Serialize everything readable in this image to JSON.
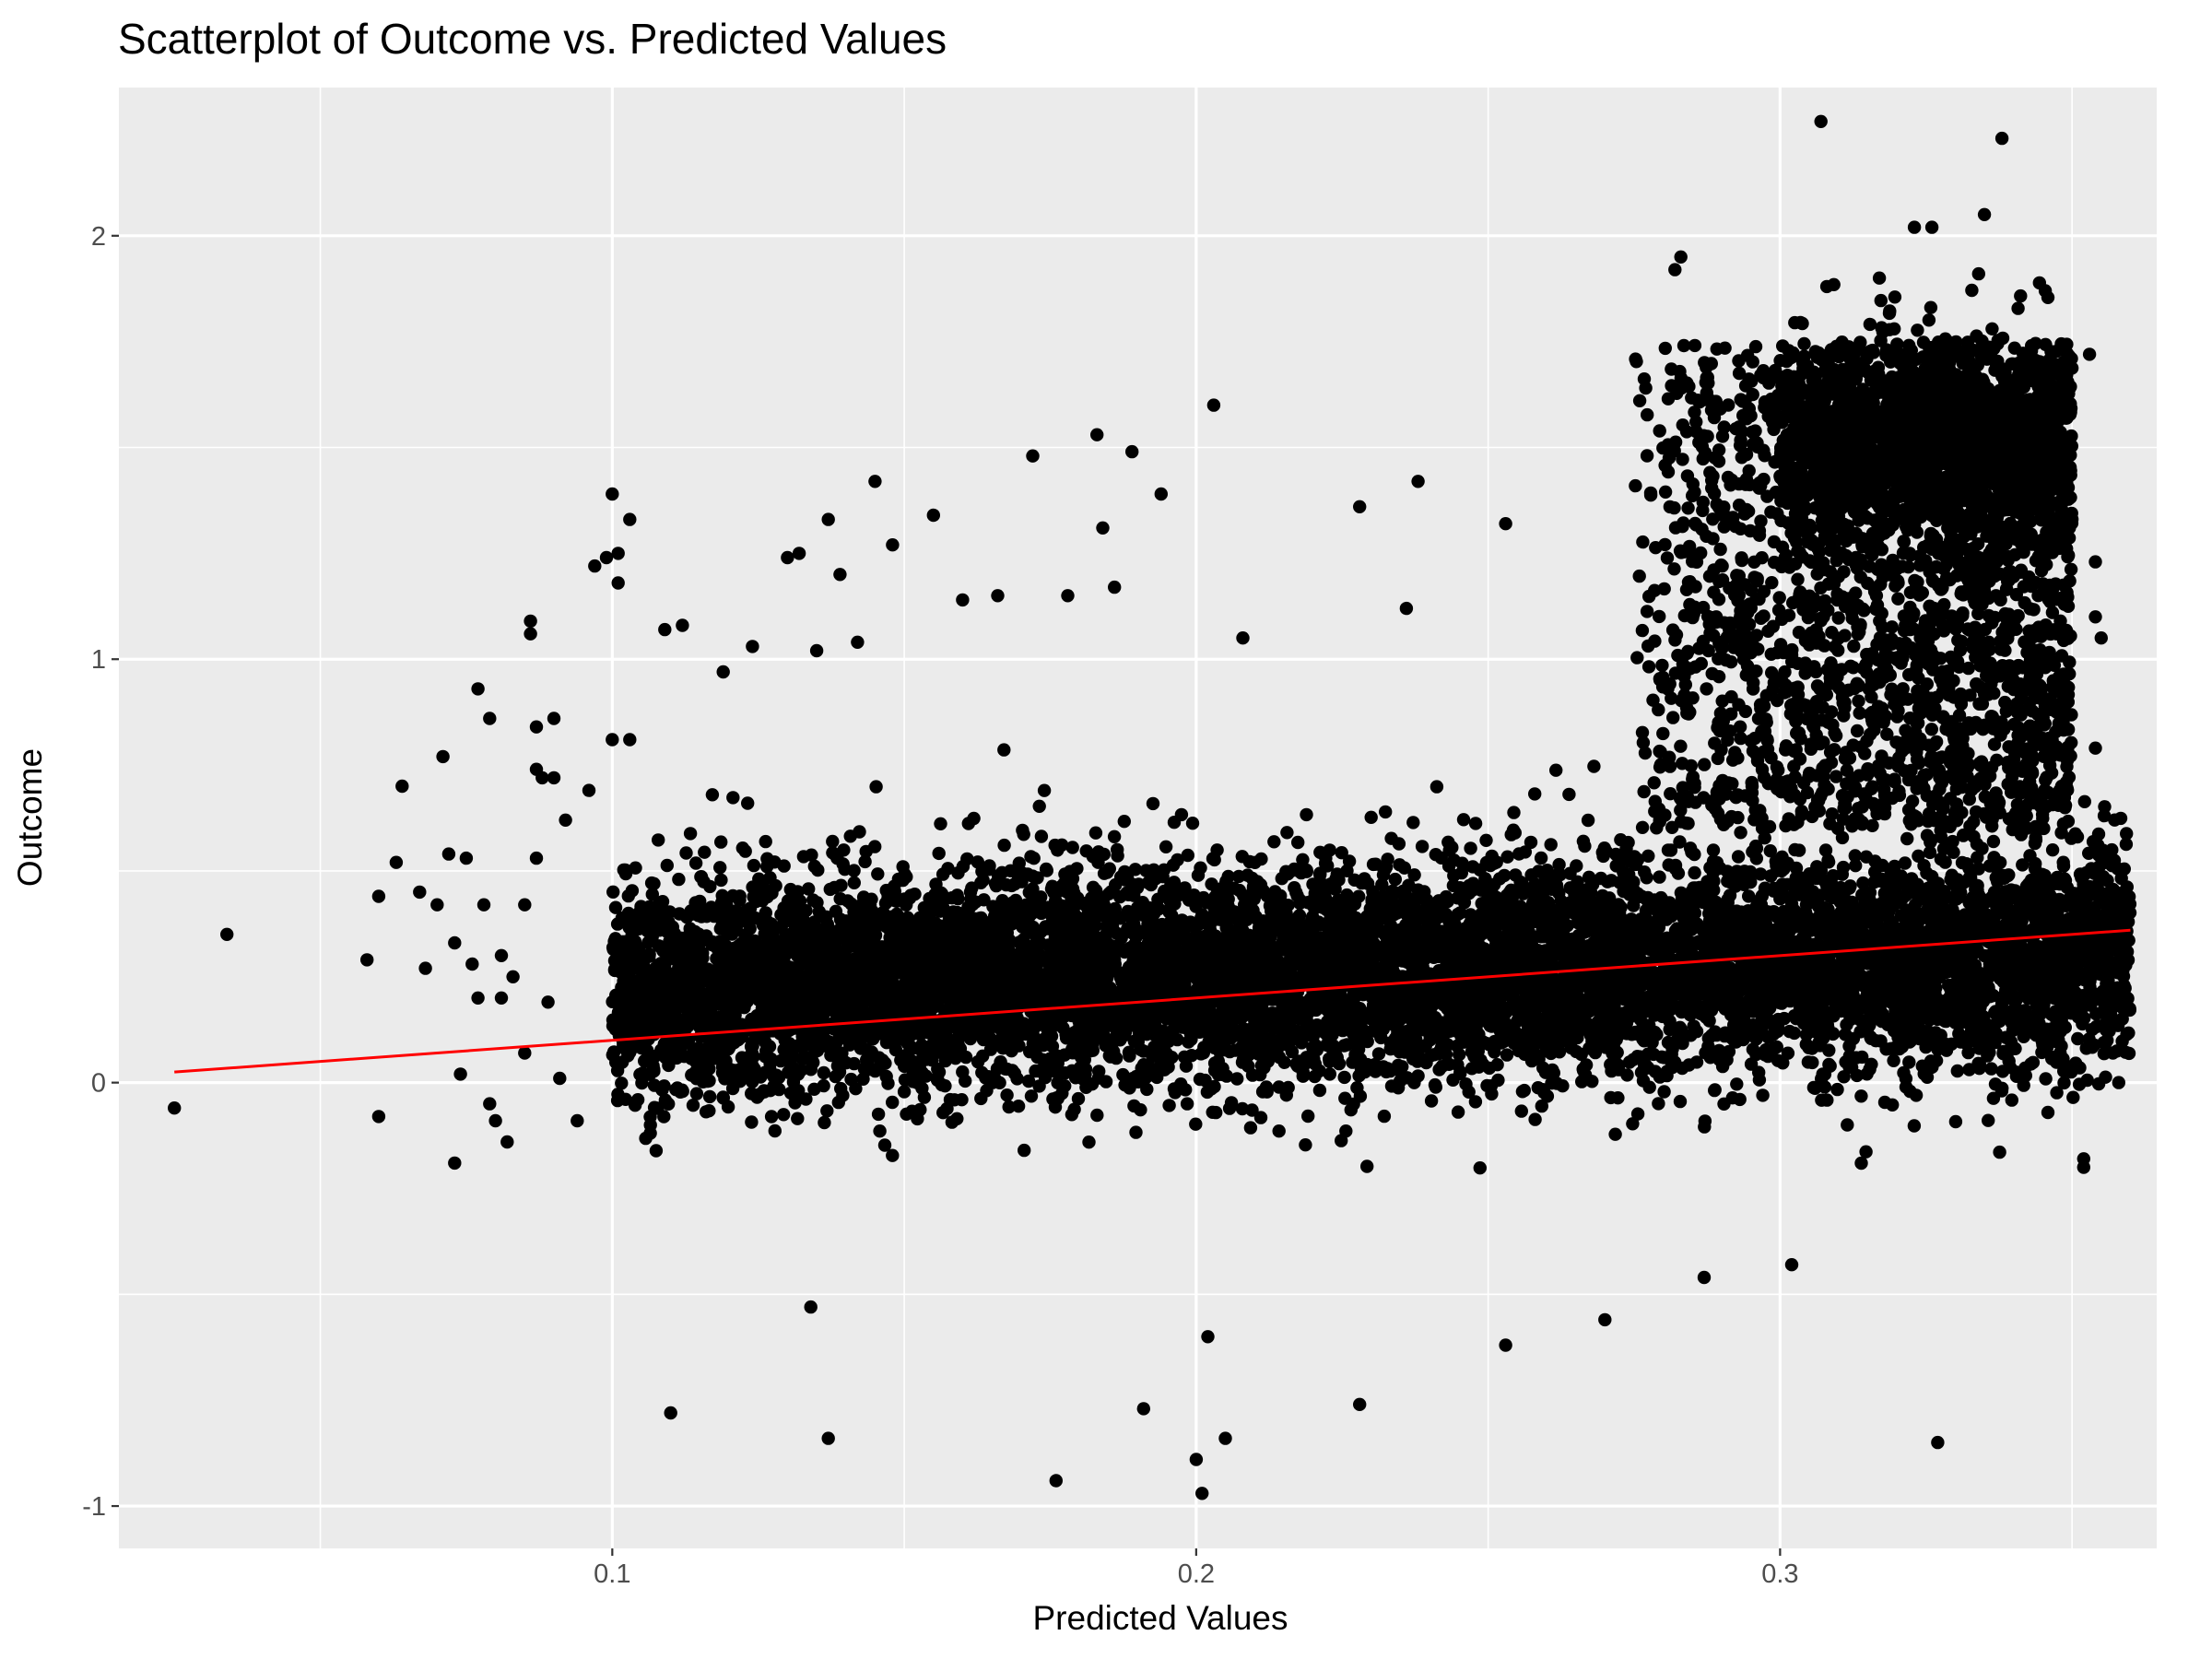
{
  "chart_data": {
    "type": "scatter",
    "title": "Scatterplot of Outcome vs. Predicted Values",
    "xlabel": "Predicted Values",
    "ylabel": "Outcome",
    "xlim": [
      0.0155,
      0.3645
    ],
    "ylim": [
      -1.1,
      2.35
    ],
    "x_ticks": [
      {
        "value": 0.1,
        "label": "0.1"
      },
      {
        "value": 0.2,
        "label": "0.2"
      },
      {
        "value": 0.3,
        "label": "0.3"
      }
    ],
    "y_ticks": [
      {
        "value": -1,
        "label": "-1"
      },
      {
        "value": 0,
        "label": "0"
      },
      {
        "value": 1,
        "label": "1"
      },
      {
        "value": 2,
        "label": "2"
      }
    ],
    "x_minor_breaks": [
      0.05,
      0.15,
      0.25,
      0.35
    ],
    "y_minor_breaks": [
      -0.5,
      0.5,
      1.5
    ],
    "grid": true,
    "background": "#ebebeb",
    "grid_color": "#ffffff",
    "point_color": "#000000",
    "points": [
      [
        0.025,
        -0.06
      ],
      [
        0.034,
        0.35
      ],
      [
        0.058,
        0.29
      ],
      [
        0.06,
        -0.08
      ],
      [
        0.06,
        0.44
      ],
      [
        0.063,
        0.52
      ],
      [
        0.064,
        0.7
      ],
      [
        0.067,
        0.45
      ],
      [
        0.068,
        0.27
      ],
      [
        0.07,
        0.42
      ],
      [
        0.071,
        0.77
      ],
      [
        0.072,
        0.54
      ],
      [
        0.073,
        0.33
      ],
      [
        0.073,
        -0.19
      ],
      [
        0.074,
        0.02
      ],
      [
        0.075,
        0.53
      ],
      [
        0.076,
        0.28
      ],
      [
        0.077,
        0.93
      ],
      [
        0.077,
        0.2
      ],
      [
        0.078,
        0.42
      ],
      [
        0.079,
        -0.05
      ],
      [
        0.079,
        0.86
      ],
      [
        0.08,
        -0.09
      ],
      [
        0.081,
        0.2
      ],
      [
        0.081,
        0.3
      ],
      [
        0.082,
        -0.14
      ],
      [
        0.083,
        0.25
      ],
      [
        0.085,
        0.42
      ],
      [
        0.085,
        0.07
      ],
      [
        0.086,
        1.09
      ],
      [
        0.086,
        1.06
      ],
      [
        0.087,
        0.84
      ],
      [
        0.087,
        0.53
      ],
      [
        0.087,
        0.74
      ],
      [
        0.088,
        0.72
      ],
      [
        0.089,
        0.19
      ],
      [
        0.09,
        0.86
      ],
      [
        0.09,
        0.72
      ],
      [
        0.091,
        0.01
      ],
      [
        0.092,
        0.62
      ],
      [
        0.094,
        -0.09
      ],
      [
        0.096,
        0.69
      ],
      [
        0.097,
        1.22
      ],
      [
        0.099,
        1.24
      ],
      [
        0.1,
        1.39
      ],
      [
        0.1,
        0.81
      ],
      [
        0.101,
        1.25
      ],
      [
        0.101,
        1.18
      ],
      [
        0.103,
        1.33
      ],
      [
        0.103,
        0.81
      ],
      [
        0.109,
        1.07
      ],
      [
        0.11,
        -0.78
      ],
      [
        0.112,
        1.08
      ],
      [
        0.119,
        0.97
      ],
      [
        0.124,
        1.03
      ],
      [
        0.13,
        1.24
      ],
      [
        0.132,
        1.25
      ],
      [
        0.134,
        -0.53
      ],
      [
        0.135,
        1.02
      ],
      [
        0.137,
        1.33
      ],
      [
        0.137,
        -0.84
      ],
      [
        0.139,
        1.2
      ],
      [
        0.142,
        1.04
      ],
      [
        0.145,
        1.42
      ],
      [
        0.148,
        1.27
      ],
      [
        0.155,
        1.34
      ],
      [
        0.16,
        1.14
      ],
      [
        0.166,
        1.15
      ],
      [
        0.172,
        1.48
      ],
      [
        0.176,
        -0.94
      ],
      [
        0.178,
        1.15
      ],
      [
        0.183,
        1.53
      ],
      [
        0.184,
        1.31
      ],
      [
        0.186,
        1.17
      ],
      [
        0.189,
        1.49
      ],
      [
        0.191,
        -0.77
      ],
      [
        0.194,
        1.39
      ],
      [
        0.2,
        -0.89
      ],
      [
        0.201,
        -0.97
      ],
      [
        0.202,
        -0.6
      ],
      [
        0.203,
        1.6
      ],
      [
        0.205,
        -0.84
      ],
      [
        0.208,
        1.05
      ],
      [
        0.228,
        1.36
      ],
      [
        0.228,
        -0.76
      ],
      [
        0.236,
        1.12
      ],
      [
        0.238,
        1.42
      ],
      [
        0.253,
        1.32
      ],
      [
        0.253,
        -0.62
      ],
      [
        0.27,
        -0.56
      ],
      [
        0.282,
        1.92
      ],
      [
        0.283,
        1.95
      ],
      [
        0.287,
        -0.46
      ],
      [
        0.302,
        -0.43
      ],
      [
        0.307,
        2.27
      ],
      [
        0.308,
        1.88
      ],
      [
        0.317,
        1.9
      ],
      [
        0.323,
        2.02
      ],
      [
        0.326,
        2.02
      ],
      [
        0.327,
        -0.85
      ],
      [
        0.334,
        1.91
      ],
      [
        0.335,
        2.05
      ],
      [
        0.338,
        2.23
      ],
      [
        0.353,
        1.72
      ],
      [
        0.354,
        1.23
      ],
      [
        0.354,
        1.1
      ],
      [
        0.354,
        0.79
      ],
      [
        0.355,
        1.05
      ],
      [
        0.356,
        0.1
      ],
      [
        0.357,
        0.07
      ],
      [
        0.358,
        0.0
      ],
      [
        0.352,
        -0.18
      ],
      [
        0.352,
        -0.2
      ]
    ],
    "dense_regions": [
      {
        "x": [
          0.1,
          0.36
        ],
        "y_center_at_x0": 0.22,
        "y_center_at_x1": 0.3,
        "spread": 0.24,
        "count": 9000
      },
      {
        "x": [
          0.275,
          0.35
        ],
        "y": [
          0.6,
          1.75
        ],
        "count": 2200
      },
      {
        "x": [
          0.3,
          0.35
        ],
        "y": [
          1.3,
          1.7
        ],
        "count": 1500
      }
    ],
    "fit_line": {
      "color": "#ff0000",
      "x": [
        0.025,
        0.36
      ],
      "y": [
        0.025,
        0.36
      ]
    }
  }
}
